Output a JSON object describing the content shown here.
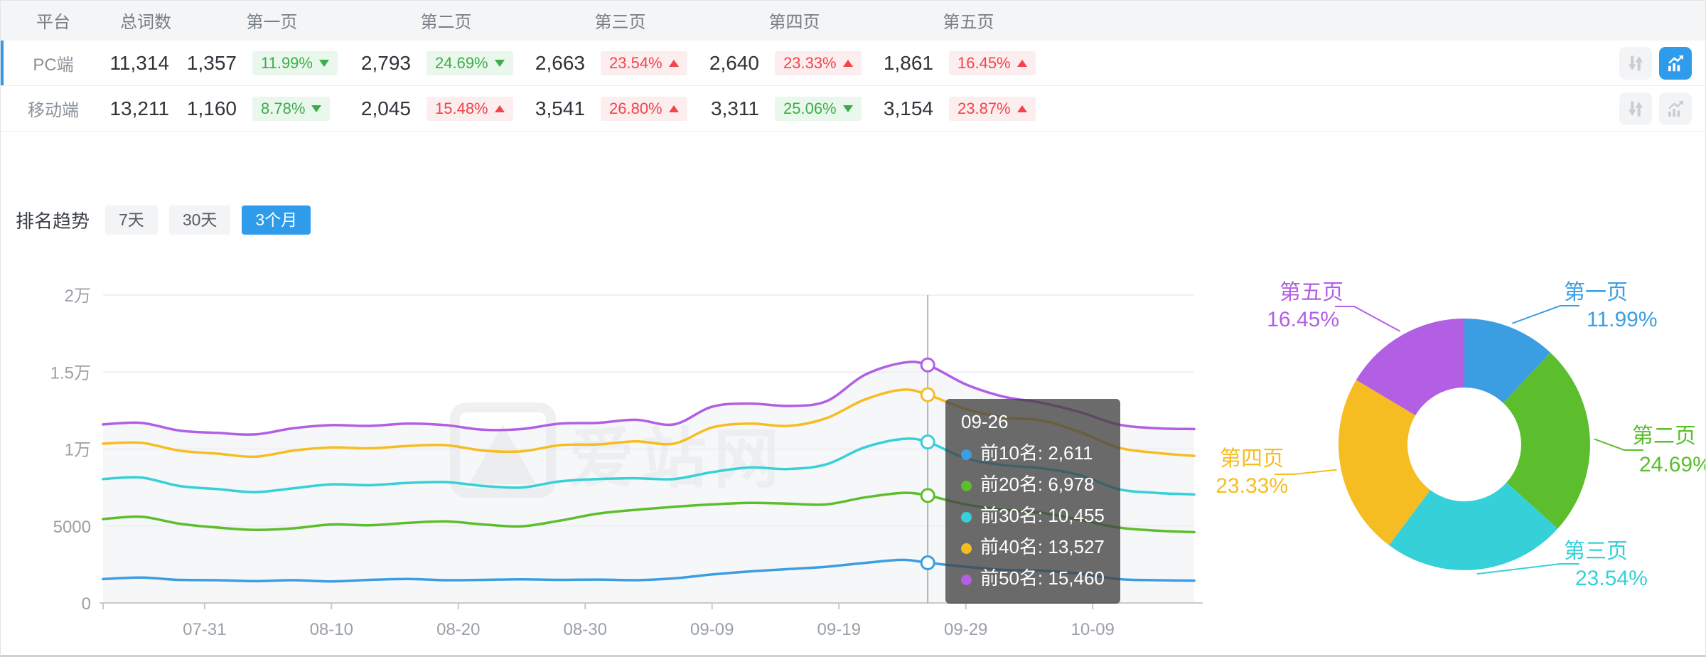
{
  "colors": {
    "accent_blue": "#2e9cea",
    "badge_green_text": "#3bae49",
    "badge_green_bg": "#eaf7ec",
    "badge_red_text": "#f4434b",
    "badge_red_bg": "#fcedee",
    "grid": "#ebedee",
    "axis": "#c9c9c9",
    "tick_label": "#9aa0a6"
  },
  "icons": {
    "compare": "sort-arrows-icon",
    "trend": "trend-chart-icon"
  },
  "table": {
    "columns": [
      "平台",
      "总词数",
      "第一页",
      "第二页",
      "第三页",
      "第四页",
      "第五页"
    ],
    "rows": [
      {
        "platform": "PC端",
        "total": "11,314",
        "selected": true,
        "pages": [
          {
            "count": "1,357",
            "pct": "11.99%",
            "dir": "down",
            "tone": "green"
          },
          {
            "count": "2,793",
            "pct": "24.69%",
            "dir": "down",
            "tone": "green"
          },
          {
            "count": "2,663",
            "pct": "23.54%",
            "dir": "up",
            "tone": "red"
          },
          {
            "count": "2,640",
            "pct": "23.33%",
            "dir": "up",
            "tone": "red"
          },
          {
            "count": "1,861",
            "pct": "16.45%",
            "dir": "up",
            "tone": "red"
          }
        ],
        "actions": {
          "compare_active": false,
          "trend_active": true
        }
      },
      {
        "platform": "移动端",
        "total": "13,211",
        "selected": false,
        "pages": [
          {
            "count": "1,160",
            "pct": "8.78%",
            "dir": "down",
            "tone": "green"
          },
          {
            "count": "2,045",
            "pct": "15.48%",
            "dir": "up",
            "tone": "red"
          },
          {
            "count": "3,541",
            "pct": "26.80%",
            "dir": "up",
            "tone": "red"
          },
          {
            "count": "3,311",
            "pct": "25.06%",
            "dir": "down",
            "tone": "green"
          },
          {
            "count": "3,154",
            "pct": "23.87%",
            "dir": "up",
            "tone": "red"
          }
        ],
        "actions": {
          "compare_active": false,
          "trend_active": false
        }
      }
    ]
  },
  "trend": {
    "title": "排名趋势",
    "tabs": [
      {
        "label": "7天",
        "active": false
      },
      {
        "label": "30天",
        "active": false
      },
      {
        "label": "3个月",
        "active": true
      }
    ]
  },
  "watermark": "爱站网",
  "chart_data": [
    {
      "type": "line",
      "title": "排名趋势 3个月",
      "ylim": [
        0,
        20000
      ],
      "grid": true,
      "y_ticks": [
        [
          0,
          "0"
        ],
        [
          5000,
          "5000"
        ],
        [
          10000,
          "1万"
        ],
        [
          15000,
          "1.5万"
        ],
        [
          20000,
          "2万"
        ]
      ],
      "x_ticks": {
        "labels": [
          "07-31",
          "08-10",
          "08-20",
          "08-30",
          "09-09",
          "09-19",
          "09-29",
          "10-09"
        ],
        "days": [
          8,
          18,
          28,
          38,
          48,
          58,
          68,
          78
        ]
      },
      "x_total_days": 86,
      "crosshair_day": 65,
      "series": [
        {
          "name": "前10名",
          "color": "#3b9ee2",
          "points": [
            [
              0,
              1550
            ],
            [
              3,
              1650
            ],
            [
              6,
              1500
            ],
            [
              9,
              1480
            ],
            [
              12,
              1420
            ],
            [
              15,
              1480
            ],
            [
              18,
              1400
            ],
            [
              21,
              1500
            ],
            [
              24,
              1560
            ],
            [
              27,
              1480
            ],
            [
              30,
              1500
            ],
            [
              33,
              1540
            ],
            [
              36,
              1500
            ],
            [
              39,
              1520
            ],
            [
              42,
              1480
            ],
            [
              45,
              1600
            ],
            [
              48,
              1850
            ],
            [
              51,
              2050
            ],
            [
              54,
              2200
            ],
            [
              57,
              2350
            ],
            [
              60,
              2600
            ],
            [
              63,
              2800
            ],
            [
              65,
              2611
            ],
            [
              68,
              2350
            ],
            [
              71,
              2150
            ],
            [
              74,
              2100
            ],
            [
              77,
              1900
            ],
            [
              80,
              1550
            ],
            [
              83,
              1480
            ],
            [
              86,
              1450
            ]
          ]
        },
        {
          "name": "前20名",
          "color": "#5cbe2d",
          "points": [
            [
              0,
              5450
            ],
            [
              3,
              5600
            ],
            [
              6,
              5150
            ],
            [
              9,
              4900
            ],
            [
              12,
              4750
            ],
            [
              15,
              4850
            ],
            [
              18,
              5100
            ],
            [
              21,
              5050
            ],
            [
              24,
              5200
            ],
            [
              27,
              5300
            ],
            [
              30,
              5100
            ],
            [
              33,
              4980
            ],
            [
              36,
              5350
            ],
            [
              39,
              5800
            ],
            [
              42,
              6050
            ],
            [
              45,
              6250
            ],
            [
              48,
              6400
            ],
            [
              51,
              6500
            ],
            [
              54,
              6450
            ],
            [
              57,
              6400
            ],
            [
              60,
              6850
            ],
            [
              63,
              7150
            ],
            [
              65,
              6978
            ],
            [
              68,
              6400
            ],
            [
              71,
              6050
            ],
            [
              74,
              5850
            ],
            [
              77,
              5400
            ],
            [
              80,
              4900
            ],
            [
              83,
              4700
            ],
            [
              86,
              4600
            ]
          ]
        },
        {
          "name": "前30名",
          "color": "#36d0d8",
          "points": [
            [
              0,
              8050
            ],
            [
              3,
              8150
            ],
            [
              6,
              7600
            ],
            [
              9,
              7400
            ],
            [
              12,
              7200
            ],
            [
              15,
              7450
            ],
            [
              18,
              7700
            ],
            [
              21,
              7650
            ],
            [
              24,
              7800
            ],
            [
              27,
              7850
            ],
            [
              30,
              7600
            ],
            [
              33,
              7500
            ],
            [
              36,
              7900
            ],
            [
              39,
              8050
            ],
            [
              42,
              8100
            ],
            [
              45,
              8050
            ],
            [
              48,
              8500
            ],
            [
              51,
              8800
            ],
            [
              54,
              8700
            ],
            [
              57,
              9000
            ],
            [
              60,
              10100
            ],
            [
              63,
              10650
            ],
            [
              65,
              10455
            ],
            [
              68,
              9400
            ],
            [
              71,
              8950
            ],
            [
              74,
              8750
            ],
            [
              77,
              8300
            ],
            [
              80,
              7400
            ],
            [
              83,
              7150
            ],
            [
              86,
              7050
            ]
          ]
        },
        {
          "name": "前40名",
          "color": "#f6bd22",
          "points": [
            [
              0,
              10350
            ],
            [
              3,
              10400
            ],
            [
              6,
              9900
            ],
            [
              9,
              9700
            ],
            [
              12,
              9500
            ],
            [
              15,
              9900
            ],
            [
              18,
              10100
            ],
            [
              21,
              10050
            ],
            [
              24,
              10200
            ],
            [
              27,
              10250
            ],
            [
              30,
              9900
            ],
            [
              33,
              9850
            ],
            [
              36,
              10250
            ],
            [
              39,
              10300
            ],
            [
              42,
              10500
            ],
            [
              45,
              10350
            ],
            [
              48,
              11400
            ],
            [
              51,
              11650
            ],
            [
              54,
              11500
            ],
            [
              57,
              12000
            ],
            [
              60,
              13200
            ],
            [
              63,
              13850
            ],
            [
              65,
              13527
            ],
            [
              68,
              12600
            ],
            [
              71,
              12050
            ],
            [
              74,
              11850
            ],
            [
              77,
              11100
            ],
            [
              80,
              10100
            ],
            [
              83,
              9750
            ],
            [
              86,
              9550
            ]
          ]
        },
        {
          "name": "前50名",
          "color": "#b25fe3",
          "points": [
            [
              0,
              11600
            ],
            [
              3,
              11700
            ],
            [
              6,
              11200
            ],
            [
              9,
              11050
            ],
            [
              12,
              10950
            ],
            [
              15,
              11350
            ],
            [
              18,
              11550
            ],
            [
              21,
              11500
            ],
            [
              24,
              11650
            ],
            [
              27,
              11550
            ],
            [
              30,
              11250
            ],
            [
              33,
              11300
            ],
            [
              36,
              11650
            ],
            [
              39,
              11700
            ],
            [
              42,
              11900
            ],
            [
              45,
              11600
            ],
            [
              48,
              12750
            ],
            [
              51,
              12950
            ],
            [
              54,
              12800
            ],
            [
              57,
              13100
            ],
            [
              60,
              14800
            ],
            [
              63,
              15600
            ],
            [
              65,
              15460
            ],
            [
              68,
              14200
            ],
            [
              71,
              13400
            ],
            [
              74,
              13000
            ],
            [
              77,
              12400
            ],
            [
              80,
              11600
            ],
            [
              83,
              11350
            ],
            [
              86,
              11300
            ]
          ]
        }
      ],
      "tooltip": {
        "date": "09-26",
        "items": [
          {
            "name": "前10名",
            "value": "2,611",
            "value_num": 2611,
            "color": "#3b9ee2"
          },
          {
            "name": "前20名",
            "value": "6,978",
            "value_num": 6978,
            "color": "#5cbe2d"
          },
          {
            "name": "前30名",
            "value": "10,455",
            "value_num": 10455,
            "color": "#36d0d8"
          },
          {
            "name": "前40名",
            "value": "13,527",
            "value_num": 13527,
            "color": "#f6bd22"
          },
          {
            "name": "前50名",
            "value": "15,460",
            "value_num": 15460,
            "color": "#b25fe3"
          }
        ]
      }
    },
    {
      "type": "pie",
      "inner_radius_ratio": 0.45,
      "slices": [
        {
          "label": "第一页",
          "pct_label": "11.99%",
          "pct": 11.99,
          "color": "#3b9ee2"
        },
        {
          "label": "第二页",
          "pct_label": "24.69%",
          "pct": 24.69,
          "color": "#5cbe2d"
        },
        {
          "label": "第三页",
          "pct_label": "23.54%",
          "pct": 23.54,
          "color": "#36d0d8"
        },
        {
          "label": "第四页",
          "pct_label": "23.33%",
          "pct": 23.33,
          "color": "#f6bd22"
        },
        {
          "label": "第五页",
          "pct_label": "16.45%",
          "pct": 16.45,
          "color": "#b25fe3"
        }
      ]
    }
  ]
}
